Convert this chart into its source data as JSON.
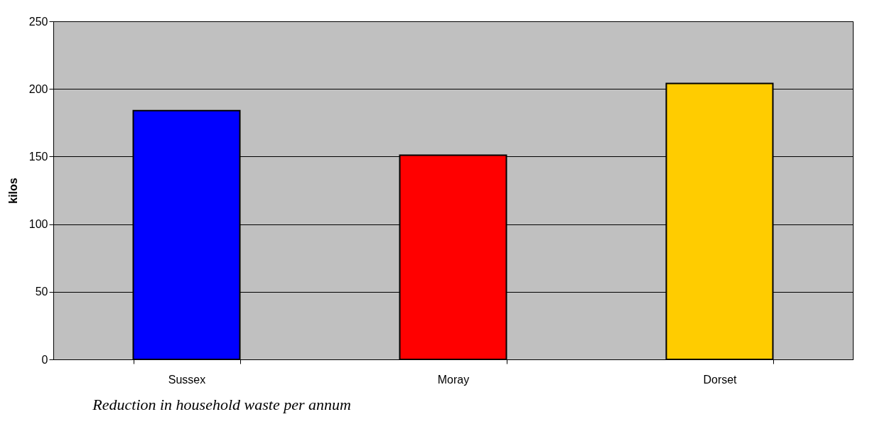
{
  "chart_data": {
    "type": "bar",
    "title": "Reduction in household waste per annum",
    "ylabel": "kilos",
    "categories": [
      "Sussex",
      "Moray",
      "Dorset"
    ],
    "values": [
      184,
      151,
      204
    ],
    "colors": [
      "#0000ff",
      "#ff0000",
      "#ffcc00"
    ],
    "ylim": [
      0,
      250
    ],
    "yticks": [
      0,
      50,
      100,
      150,
      200,
      250
    ],
    "grid": "y"
  }
}
